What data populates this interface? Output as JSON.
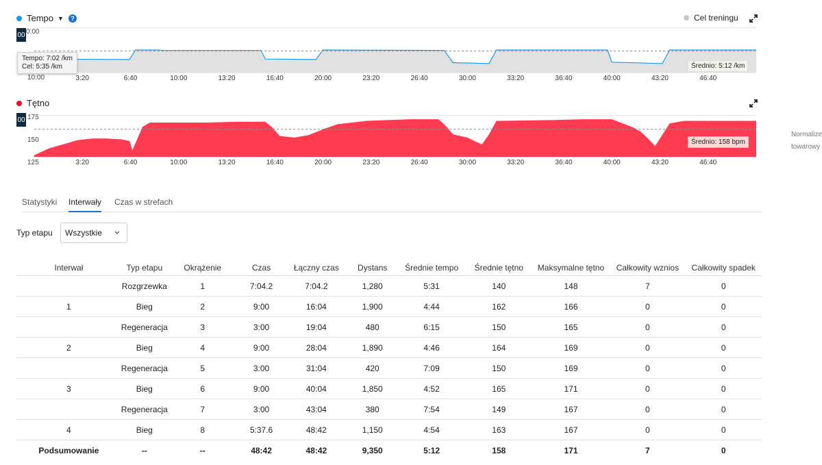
{
  "pace_chart": {
    "title": "Tempo",
    "series_color": "#1a9be8",
    "y_top_label": "0:00",
    "y_bottom_label": "10:00",
    "y_overlay": "00",
    "tooltip": {
      "line1": "Tempo: 7:02 /km",
      "line2": "Cel: 5:35 /km"
    },
    "average": "Średnio: 5:12 /km",
    "legend_goal": "Cel treningu",
    "x_ticks": [
      "3:20",
      "6:40",
      "10:00",
      "13:20",
      "16:40",
      "20:00",
      "23:20",
      "26:40",
      "30:00",
      "33:20",
      "36:40",
      "40:00",
      "43:20",
      "46:40"
    ],
    "chart_data": {
      "type": "area",
      "x_unit": "min",
      "y_unit": "min/km",
      "ylim": [
        0,
        10
      ],
      "series": [
        {
          "x": [
            0,
            6.6,
            7,
            8.5,
            9,
            15.7,
            16,
            19.5,
            20,
            28.4,
            29,
            31.5,
            32,
            39.7,
            40,
            43.5,
            44,
            50
          ],
          "y": [
            7.0,
            7.1,
            5.0,
            5.0,
            5.1,
            5.1,
            7.0,
            7.1,
            5.0,
            5.1,
            7.8,
            8.0,
            5.0,
            5.0,
            7.7,
            8.0,
            5.0,
            5.0
          ]
        }
      ]
    }
  },
  "hr_chart": {
    "title": "Tętno",
    "series_color": "#ff3b52",
    "y_overlay": "00",
    "y_ticks": [
      "175",
      "150",
      "125"
    ],
    "average": "Średnio: 158 bpm",
    "x_ticks": [
      "3:20",
      "6:40",
      "10:00",
      "13:20",
      "16:40",
      "20:00",
      "23:20",
      "26:40",
      "30:00",
      "33:20",
      "36:40",
      "40:00",
      "43:20",
      "46:40"
    ],
    "chart_data": {
      "type": "area",
      "x_unit": "min",
      "y_unit": "bpm",
      "ylim": [
        125,
        175
      ],
      "series": [
        {
          "x": [
            0,
            1,
            2,
            3,
            4,
            5,
            6,
            6.6,
            6.8,
            7.5,
            8,
            10,
            12,
            14,
            16,
            16.5,
            17,
            18,
            19,
            20,
            21,
            23,
            26,
            28,
            28.5,
            29,
            30,
            30.6,
            31,
            31.5,
            32,
            36,
            38,
            40,
            41.5,
            42,
            42.5,
            43,
            44,
            45,
            50
          ],
          "y": [
            127,
            135,
            140,
            145,
            147,
            147,
            146,
            144,
            133,
            161,
            166,
            166,
            166,
            167,
            167,
            160,
            150,
            148,
            151,
            158,
            164,
            168,
            170,
            170,
            162,
            152,
            148,
            143,
            140,
            152,
            168,
            169,
            170,
            170,
            160,
            155,
            147,
            138,
            165,
            168,
            168
          ]
        }
      ]
    }
  },
  "side_note": {
    "line1": "Normalize",
    "line2": "towarowy"
  },
  "tabs": [
    {
      "label": "Statystyki",
      "active": false
    },
    {
      "label": "Interwały",
      "active": true
    },
    {
      "label": "Czas w strefach",
      "active": false
    }
  ],
  "filter": {
    "label": "Typ etapu",
    "value": "Wszystkie"
  },
  "table": {
    "headers": [
      "Interwał",
      "Typ etapu",
      "Okrążenie",
      "Czas",
      "Łączny czas",
      "Dystans",
      "Średnie tempo",
      "Średnie tętno",
      "Maksymalne tętno",
      "Całkowity wznios",
      "Całkowity spadek"
    ],
    "rows": [
      [
        "",
        "Rozgrzewka",
        "1",
        "7:04.2",
        "7:04.2",
        "1,280",
        "5:31",
        "140",
        "148",
        "7",
        "0"
      ],
      [
        "1",
        "Bieg",
        "2",
        "9:00",
        "16:04",
        "1,900",
        "4:44",
        "162",
        "166",
        "0",
        "0"
      ],
      [
        "",
        "Regeneracja",
        "3",
        "3:00",
        "19:04",
        "480",
        "6:15",
        "150",
        "165",
        "0",
        "0"
      ],
      [
        "2",
        "Bieg",
        "4",
        "9:00",
        "28:04",
        "1,890",
        "4:46",
        "164",
        "169",
        "0",
        "0"
      ],
      [
        "",
        "Regeneracja",
        "5",
        "3:00",
        "31:04",
        "420",
        "7:09",
        "150",
        "169",
        "0",
        "0"
      ],
      [
        "3",
        "Bieg",
        "6",
        "9:00",
        "40:04",
        "1,850",
        "4:52",
        "165",
        "171",
        "0",
        "0"
      ],
      [
        "",
        "Regeneracja",
        "7",
        "3:00",
        "43:04",
        "380",
        "7:54",
        "149",
        "167",
        "0",
        "0"
      ],
      [
        "4",
        "Bieg",
        "8",
        "5:37.6",
        "48:42",
        "1,150",
        "4:54",
        "163",
        "167",
        "0",
        "0"
      ]
    ],
    "summary": [
      "Podsumowanie",
      "--",
      "--",
      "48:42",
      "48:42",
      "9,350",
      "5:12",
      "158",
      "171",
      "7",
      "0"
    ]
  }
}
